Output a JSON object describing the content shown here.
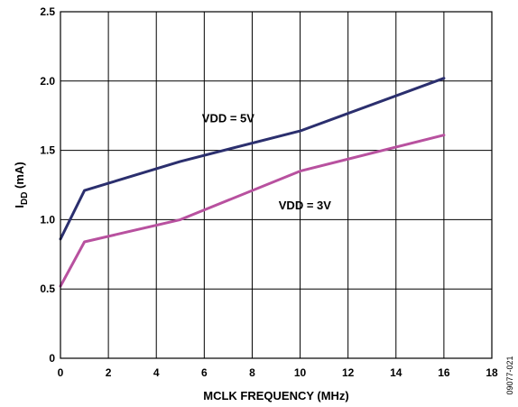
{
  "figure_id": "09077-021",
  "chart_data": {
    "type": "line",
    "xlabel": "MCLK FREQUENCY (MHz)",
    "ylabel": {
      "main": "I",
      "sub": "DD",
      "rest": " (mA)"
    },
    "xlim": [
      0,
      18
    ],
    "ylim": [
      0,
      2.5
    ],
    "xticks": [
      "0",
      "2",
      "4",
      "6",
      "8",
      "10",
      "12",
      "14",
      "16",
      "18"
    ],
    "yticks": [
      "0",
      "0.5",
      "1.0",
      "1.5",
      "2.0",
      "2.5"
    ],
    "grid": true,
    "series": [
      {
        "name": "VDD = 5V",
        "color": "#2b2f6e",
        "x": [
          0,
          1,
          5,
          10,
          16
        ],
        "y": [
          0.86,
          1.21,
          1.42,
          1.64,
          2.02
        ],
        "label_anchor": {
          "x": 7,
          "y": 1.73
        }
      },
      {
        "name": "VDD = 3V",
        "color": "#b8519f",
        "x": [
          0,
          1,
          5,
          10,
          16
        ],
        "y": [
          0.52,
          0.84,
          1.0,
          1.35,
          1.61
        ],
        "label_anchor": {
          "x": 10.2,
          "y": 1.1
        }
      }
    ]
  }
}
